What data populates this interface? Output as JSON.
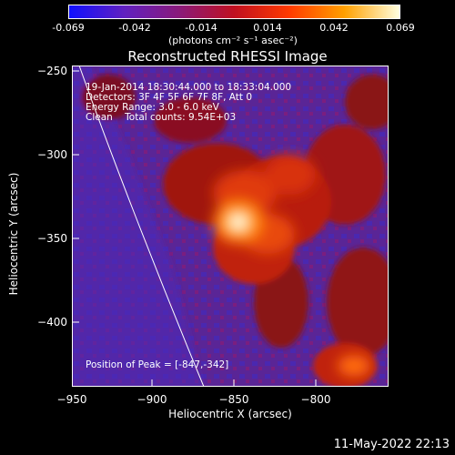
{
  "colorbar": {
    "ticks": [
      "-0.069",
      "-0.042",
      "-0.014",
      "0.014",
      "0.042",
      "0.069"
    ],
    "units": "(photons cm⁻² s⁻¹ asec⁻²)",
    "colors": [
      "#1010ff",
      "#6020c0",
      "#8a1a7a",
      "#c01020",
      "#ff3a00",
      "#ffa000",
      "#ffffe0"
    ]
  },
  "title": "Reconstructed RHESSI Image",
  "info": {
    "time_range": "19-Jan-2014 18:30:44.000 to 18:33:04.000",
    "detectors": "Detectors: 3F 4F 5F 6F 7F 8F, Att 0",
    "energy": "Energy Range: 3.0 - 6.0 keV",
    "clean": "Clean    Total counts: 9.54E+03"
  },
  "peak": "Position of Peak = [-847,-342]",
  "axes": {
    "xlabel": "Heliocentric X (arcsec)",
    "ylabel": "Heliocentric Y (arcsec)",
    "xticks": [
      "−950",
      "−900",
      "−850",
      "−800"
    ],
    "yticks": [
      "−250",
      "−300",
      "−350",
      "−400"
    ]
  },
  "footer_date": "11-May-2022 22:13"
}
